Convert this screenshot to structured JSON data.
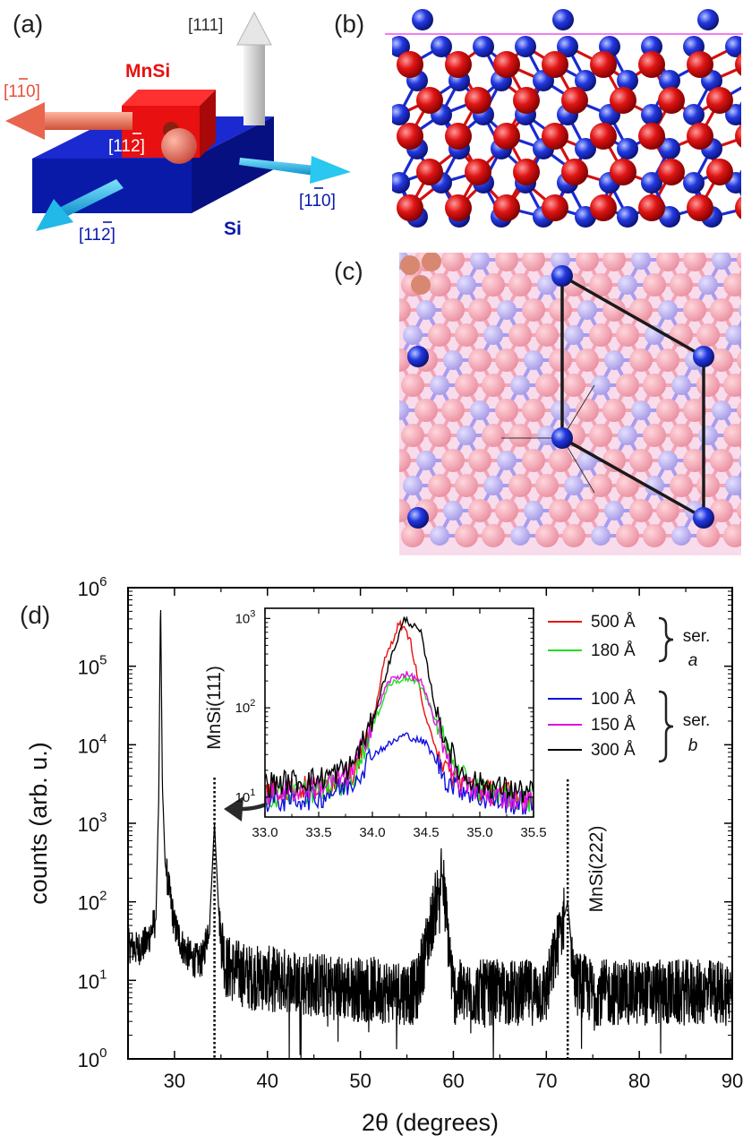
{
  "panels": {
    "a": {
      "label": "(a)",
      "mnsi_label": "MnSi",
      "si_label": "Si",
      "dir_111": "[111]",
      "dir_mnsi_1b10": "[1",
      "dir_si_1b10": "[1",
      "dir_mnsi_11b2": "[11",
      "dir_si_11b2": "[11",
      "colors": {
        "mnsi": "#e81010",
        "si": "#0a1aa8",
        "arrow_mnsi": "#e8664e",
        "arrow_si": "#22b8e8",
        "arrow_111": "#d8d8d8"
      }
    },
    "b": {
      "label": "(b)"
    },
    "c": {
      "label": "(c)"
    },
    "d": {
      "label": "(d)"
    }
  },
  "chart_data": [
    {
      "type": "line",
      "panel": "(d)",
      "xlabel": "2θ (degrees)",
      "ylabel": "counts (arb. u.)",
      "xlim": [
        25,
        90
      ],
      "ylim": [
        1,
        1000000
      ],
      "yscale": "log",
      "xticks": [
        "30",
        "40",
        "50",
        "60",
        "70",
        "80",
        "90"
      ],
      "yticks": [
        "10",
        "10",
        "10",
        "10",
        "10",
        "10",
        "10"
      ],
      "ytick_exponents": [
        "0",
        "1",
        "2",
        "3",
        "4",
        "5",
        "6"
      ],
      "annotations": [
        "MnSi(111)",
        "MnSi(222)"
      ],
      "marker_lines_x": [
        34.3,
        72.3
      ],
      "series": [
        {
          "color": "#000000",
          "x": [
            25,
            26,
            27,
            28,
            28.3,
            28.5,
            28.7,
            29,
            30,
            31,
            32,
            33,
            33.8,
            34.3,
            34.8,
            35.5,
            38,
            42,
            44.5,
            48,
            52,
            56,
            58.8,
            60,
            65,
            70,
            72.3,
            73,
            75,
            80,
            85,
            90
          ],
          "y": [
            28,
            25,
            30,
            60,
            2000,
            680000,
            3000,
            300,
            50,
            25,
            18,
            18,
            60,
            1000,
            60,
            15,
            11,
            10,
            9,
            8,
            7.5,
            7,
            230,
            7,
            7,
            7,
            100,
            10,
            7,
            7,
            7,
            7
          ]
        }
      ]
    },
    {
      "type": "line",
      "panel": "(d)-inset",
      "xlim": [
        33,
        35.5
      ],
      "ylim": [
        6,
        1300
      ],
      "yscale": "log",
      "xticks": [
        "33.0",
        "33.5",
        "34.0",
        "34.5",
        "35.0",
        "35.5"
      ],
      "yticks": [
        "10",
        "10",
        "10"
      ],
      "ytick_exponents": [
        "1",
        "2",
        "3"
      ],
      "legend_groups": [
        {
          "text": "ser.",
          "text2": "a"
        },
        {
          "text": "ser.",
          "text2": "b"
        }
      ],
      "series": [
        {
          "name": "500 Å",
          "color": "#e81010",
          "x": [
            33,
            33.5,
            33.8,
            34.0,
            34.1,
            34.25,
            34.35,
            34.5,
            34.7,
            35,
            35.5
          ],
          "y": [
            12,
            13,
            18,
            60,
            300,
            900,
            600,
            70,
            18,
            12,
            10
          ]
        },
        {
          "name": "180 Å",
          "color": "#22dd22",
          "x": [
            33,
            33.5,
            33.8,
            34.0,
            34.15,
            34.3,
            34.45,
            34.6,
            34.8,
            35,
            35.5
          ],
          "y": [
            10,
            12,
            15,
            60,
            180,
            220,
            180,
            70,
            18,
            12,
            9
          ]
        },
        {
          "name": "100 Å",
          "color": "#1010e0",
          "x": [
            33,
            33.5,
            33.8,
            34.0,
            34.3,
            34.5,
            34.7,
            35,
            35.5
          ],
          "y": [
            9,
            10,
            14,
            30,
            50,
            40,
            15,
            10,
            8
          ]
        },
        {
          "name": "150 Å",
          "color": "#e010e0",
          "x": [
            33,
            33.5,
            33.8,
            34.0,
            34.15,
            34.3,
            34.45,
            34.6,
            34.8,
            35,
            35.5
          ],
          "y": [
            11,
            13,
            18,
            70,
            200,
            240,
            200,
            60,
            15,
            11,
            9
          ]
        },
        {
          "name": "300 Å",
          "color": "#000000",
          "x": [
            33,
            33.5,
            33.8,
            34.0,
            34.15,
            34.3,
            34.45,
            34.6,
            34.8,
            35,
            35.5
          ],
          "y": [
            14,
            16,
            22,
            70,
            300,
            1000,
            700,
            80,
            20,
            14,
            11
          ]
        }
      ]
    }
  ]
}
